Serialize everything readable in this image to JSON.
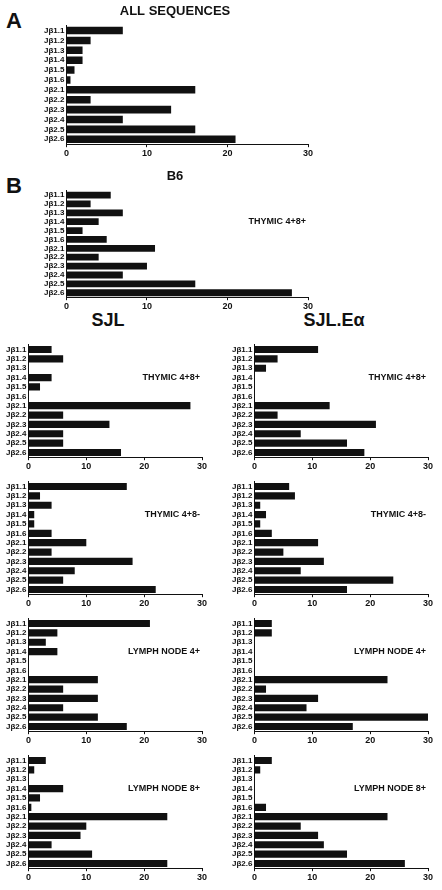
{
  "column_headings": [
    "SJL",
    "SJL.Eα"
  ],
  "chart_data": [
    {
      "type": "bar",
      "orientation": "horizontal",
      "title": "ALL SEQUENCES",
      "annotations": [
        "A"
      ],
      "categories": [
        "Jβ1.1",
        "Jβ1.2",
        "Jβ1.3",
        "Jβ1.4",
        "Jβ1.5",
        "Jβ1.6",
        "Jβ2.1",
        "Jβ2.2",
        "Jβ2.3",
        "Jβ2.4",
        "Jβ2.5",
        "Jβ2.6"
      ],
      "values": [
        7,
        3,
        2,
        2,
        1,
        0.5,
        16,
        3,
        13,
        7,
        16,
        21
      ],
      "color": "#111111",
      "xlim": [
        0,
        30
      ],
      "xticks": [
        0,
        10,
        20,
        30
      ],
      "grid": false
    },
    {
      "type": "bar",
      "orientation": "horizontal",
      "title": "B6",
      "subtitle": "THYMIC 4+8+",
      "annotations": [
        "B"
      ],
      "categories": [
        "Jβ1.1",
        "Jβ1.2",
        "Jβ1.3",
        "Jβ1.4",
        "Jβ1.5",
        "Jβ1.6",
        "Jβ2.1",
        "Jβ2.2",
        "Jβ2.3",
        "Jβ2.4",
        "Jβ2.5",
        "Jβ2.6"
      ],
      "values": [
        5.5,
        3,
        7,
        4,
        2,
        5,
        11,
        4,
        10,
        7,
        16,
        28
      ],
      "color": "#111111",
      "xlim": [
        0,
        30
      ],
      "xticks": [
        0,
        10,
        20,
        30
      ],
      "grid": false
    },
    {
      "type": "bar",
      "orientation": "horizontal",
      "subtitle": "THYMIC 4+8+",
      "categories": [
        "Jβ1.1",
        "Jβ1.2",
        "Jβ1.3",
        "Jβ1.4",
        "Jβ1.5",
        "Jβ1.6",
        "Jβ2.1",
        "Jβ2.2",
        "Jβ2.3",
        "Jβ2.4",
        "Jβ2.5",
        "Jβ2.6"
      ],
      "values": [
        4,
        6,
        0,
        4,
        2,
        0,
        28,
        6,
        14,
        6,
        6,
        16
      ],
      "color": "#111111",
      "xlim": [
        0,
        30
      ],
      "xticks": [
        0,
        10,
        20,
        30
      ],
      "grid": false
    },
    {
      "type": "bar",
      "orientation": "horizontal",
      "subtitle": "THYMIC 4+8-",
      "categories": [
        "Jβ1.1",
        "Jβ1.2",
        "Jβ1.3",
        "Jβ1.4",
        "Jβ1.5",
        "Jβ1.6",
        "Jβ2.1",
        "Jβ2.2",
        "Jβ2.3",
        "Jβ2.4",
        "Jβ2.5",
        "Jβ2.6"
      ],
      "values": [
        17,
        2,
        4,
        1,
        1,
        4,
        10,
        4,
        18,
        8,
        6,
        22
      ],
      "color": "#111111",
      "xlim": [
        0,
        30
      ],
      "xticks": [
        0,
        10,
        20,
        30
      ],
      "grid": false
    },
    {
      "type": "bar",
      "orientation": "horizontal",
      "subtitle": "LYMPH NODE 4+",
      "categories": [
        "Jβ1.1",
        "Jβ1.2",
        "Jβ1.3",
        "Jβ1.4",
        "Jβ1.5",
        "Jβ1.6",
        "Jβ2.1",
        "Jβ2.2",
        "Jβ2.3",
        "Jβ2.4",
        "Jβ2.5",
        "Jβ2.6"
      ],
      "values": [
        21,
        5,
        3,
        5,
        0,
        0,
        12,
        6,
        12,
        6,
        12,
        17
      ],
      "color": "#111111",
      "xlim": [
        0,
        30
      ],
      "xticks": [
        0,
        10,
        20,
        30
      ],
      "grid": false
    },
    {
      "type": "bar",
      "orientation": "horizontal",
      "subtitle": "LYMPH NODE 8+",
      "categories": [
        "Jβ1.1",
        "Jβ1.2",
        "Jβ1.3",
        "Jβ1.4",
        "Jβ1.5",
        "Jβ1.6",
        "Jβ2.1",
        "Jβ2.2",
        "Jβ2.3",
        "Jβ2.4",
        "Jβ2.5",
        "Jβ2.6"
      ],
      "values": [
        3,
        1,
        0,
        6,
        2,
        0.5,
        24,
        10,
        9,
        4,
        11,
        24
      ],
      "color": "#111111",
      "xlim": [
        0,
        30
      ],
      "xticks": [
        0,
        10,
        20,
        30
      ],
      "grid": false
    },
    {
      "type": "bar",
      "orientation": "horizontal",
      "subtitle": "THYMIC 4+8+",
      "categories": [
        "Jβ1.1",
        "Jβ1.2",
        "Jβ1.3",
        "Jβ1.4",
        "Jβ1.5",
        "Jβ1.6",
        "Jβ2.1",
        "Jβ2.2",
        "Jβ2.3",
        "Jβ2.4",
        "Jβ2.5",
        "Jβ2.6"
      ],
      "values": [
        11,
        4,
        2,
        0,
        0,
        0,
        13,
        4,
        21,
        8,
        16,
        19
      ],
      "color": "#111111",
      "xlim": [
        0,
        30
      ],
      "xticks": [
        0,
        10,
        20,
        30
      ],
      "grid": false
    },
    {
      "type": "bar",
      "orientation": "horizontal",
      "subtitle": "THYMIC 4+8-",
      "categories": [
        "Jβ1.1",
        "Jβ1.2",
        "Jβ1.3",
        "Jβ1.4",
        "Jβ1.5",
        "Jβ1.6",
        "Jβ2.1",
        "Jβ2.2",
        "Jβ2.3",
        "Jβ2.4",
        "Jβ2.5",
        "Jβ2.6"
      ],
      "values": [
        6,
        7,
        1,
        2,
        1,
        3,
        11,
        5,
        12,
        8,
        24,
        16
      ],
      "color": "#111111",
      "xlim": [
        0,
        30
      ],
      "xticks": [
        0,
        10,
        20,
        30
      ],
      "grid": false
    },
    {
      "type": "bar",
      "orientation": "horizontal",
      "subtitle": "LYMPH NODE 4+",
      "categories": [
        "Jβ1.1",
        "Jβ1.2",
        "Jβ1.3",
        "Jβ1.4",
        "Jβ1.5",
        "Jβ1.6",
        "Jβ2.1",
        "Jβ2.2",
        "Jβ2.3",
        "Jβ2.4",
        "Jβ2.5",
        "Jβ2.6"
      ],
      "values": [
        3,
        3,
        0,
        0,
        0,
        0,
        23,
        2,
        11,
        9,
        30,
        17
      ],
      "color": "#111111",
      "xlim": [
        0,
        30
      ],
      "xticks": [
        0,
        10,
        20,
        30
      ],
      "grid": false
    },
    {
      "type": "bar",
      "orientation": "horizontal",
      "subtitle": "LYMPH NODE 8+",
      "categories": [
        "Jβ1.1",
        "Jβ1.2",
        "Jβ1.3",
        "Jβ1.4",
        "Jβ1.5",
        "Jβ1.6",
        "Jβ2.1",
        "Jβ2.2",
        "Jβ2.3",
        "Jβ2.4",
        "Jβ2.5",
        "Jβ2.6"
      ],
      "values": [
        3,
        1,
        0,
        0,
        0,
        2,
        23,
        8,
        11,
        12,
        16,
        26
      ],
      "color": "#111111",
      "xlim": [
        0,
        30
      ],
      "xticks": [
        0,
        10,
        20,
        30
      ],
      "grid": false
    }
  ]
}
